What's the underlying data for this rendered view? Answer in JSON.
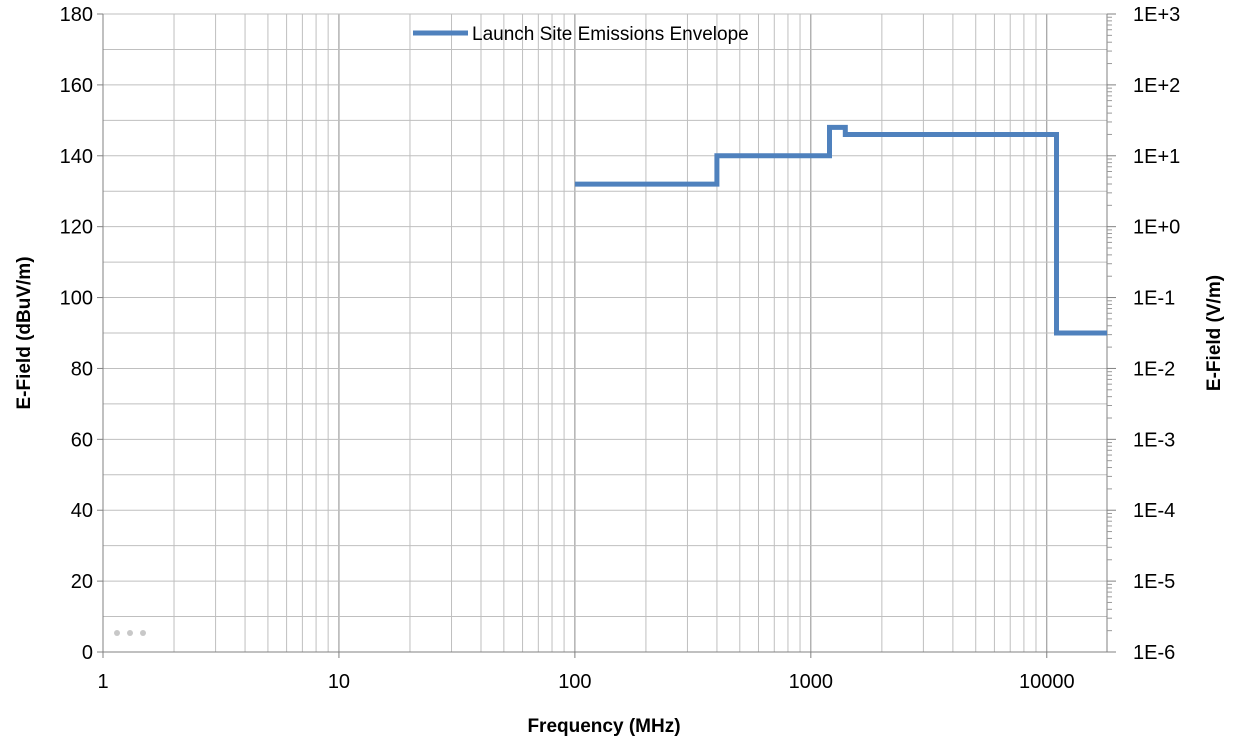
{
  "chart_data": {
    "type": "line",
    "xlabel": "Frequency (MHz)",
    "ylabel": "E-Field (dBuV/m)",
    "y2label": "E-Field (V/m)",
    "x_scale": "log",
    "xlim": [
      1,
      18000
    ],
    "ylim": [
      0,
      180
    ],
    "y2_scale": "log",
    "y2lim": [
      1e-06,
      1000
    ],
    "x_ticks": [
      1,
      10,
      100,
      1000,
      10000
    ],
    "x_tick_labels": [
      "1",
      "10",
      "100",
      "1000",
      "10000"
    ],
    "y_ticks": [
      0,
      20,
      40,
      60,
      80,
      100,
      120,
      140,
      160,
      180
    ],
    "y_tick_labels": [
      "0",
      "20",
      "40",
      "60",
      "80",
      "100",
      "120",
      "140",
      "160",
      "180"
    ],
    "y2_ticks": [
      1e-06,
      1e-05,
      0.0001,
      0.001,
      0.01,
      0.1,
      1,
      10,
      100,
      1000
    ],
    "y2_tick_labels": [
      "1E-6",
      "1E-5",
      "1E-4",
      "1E-3",
      "1E-2",
      "1E-1",
      "1E+0",
      "1E+1",
      "1E+2",
      "1E+3"
    ],
    "grid": true,
    "legend_position": "top-center",
    "series": [
      {
        "name": "Launch Site Emissions Envelope",
        "color": "#4F81BD",
        "x": [
          100,
          400,
          400,
          1200,
          1200,
          1400,
          1400,
          11000,
          11000,
          18000
        ],
        "y": [
          132,
          132,
          140,
          140,
          148,
          148,
          146,
          146,
          90,
          90
        ]
      }
    ]
  }
}
